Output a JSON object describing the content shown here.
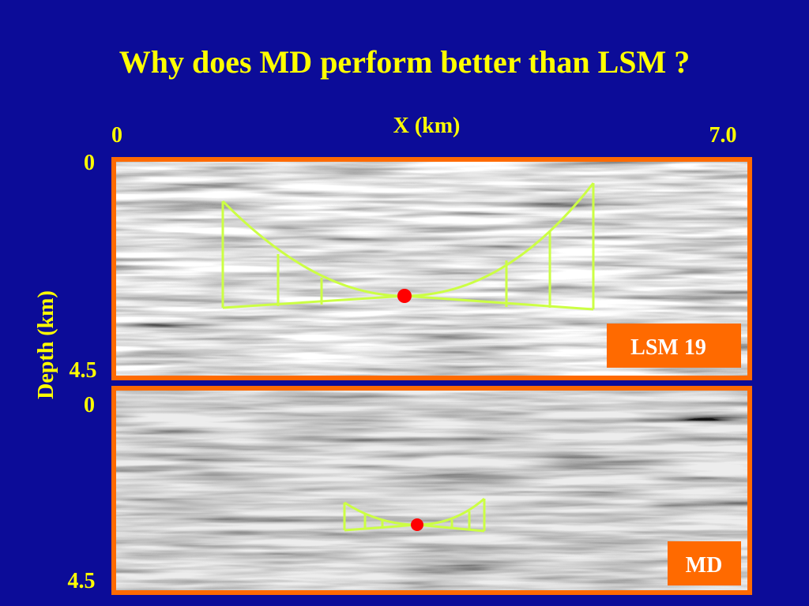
{
  "header": {
    "title": "Why does MD perform better than LSM ?"
  },
  "x_axis": {
    "label": "X (km)",
    "ticks": [
      "0",
      "7.0"
    ]
  },
  "y_axis": {
    "label": "Depth (km)"
  },
  "panels": [
    {
      "label": "LSM 19",
      "depth_ticks": [
        "0",
        "4.5"
      ]
    },
    {
      "label": "MD",
      "depth_ticks": [
        "0",
        "4.5"
      ]
    }
  ]
}
